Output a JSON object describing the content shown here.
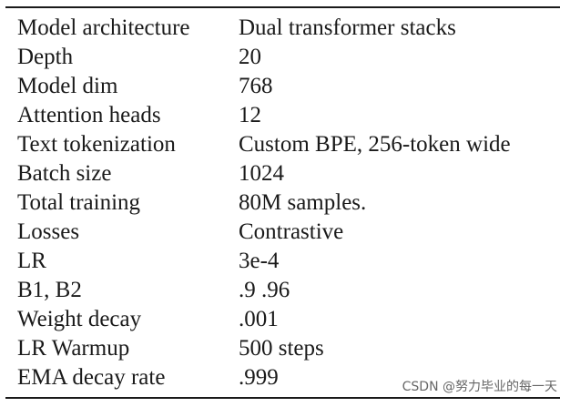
{
  "table": {
    "rows": [
      {
        "param": "Model architecture",
        "value": "Dual transformer stacks"
      },
      {
        "param": "Depth",
        "value": "20"
      },
      {
        "param": "Model dim",
        "value": "768"
      },
      {
        "param": "Attention heads",
        "value": "12"
      },
      {
        "param": "Text tokenization",
        "value": "Custom BPE, 256-token wide"
      },
      {
        "param": "Batch size",
        "value": "1024"
      },
      {
        "param": "Total training",
        "value": "80M samples."
      },
      {
        "param": "Losses",
        "value": "Contrastive"
      },
      {
        "param": "LR",
        "value": "3e-4"
      },
      {
        "param": "B1, B2",
        "value": ".9 .96"
      },
      {
        "param": "Weight decay",
        "value": ".001"
      },
      {
        "param": "LR Warmup",
        "value": "500 steps"
      },
      {
        "param": "EMA decay rate",
        "value": ".999"
      }
    ]
  },
  "watermark": "CSDN @努力毕业的每一天"
}
